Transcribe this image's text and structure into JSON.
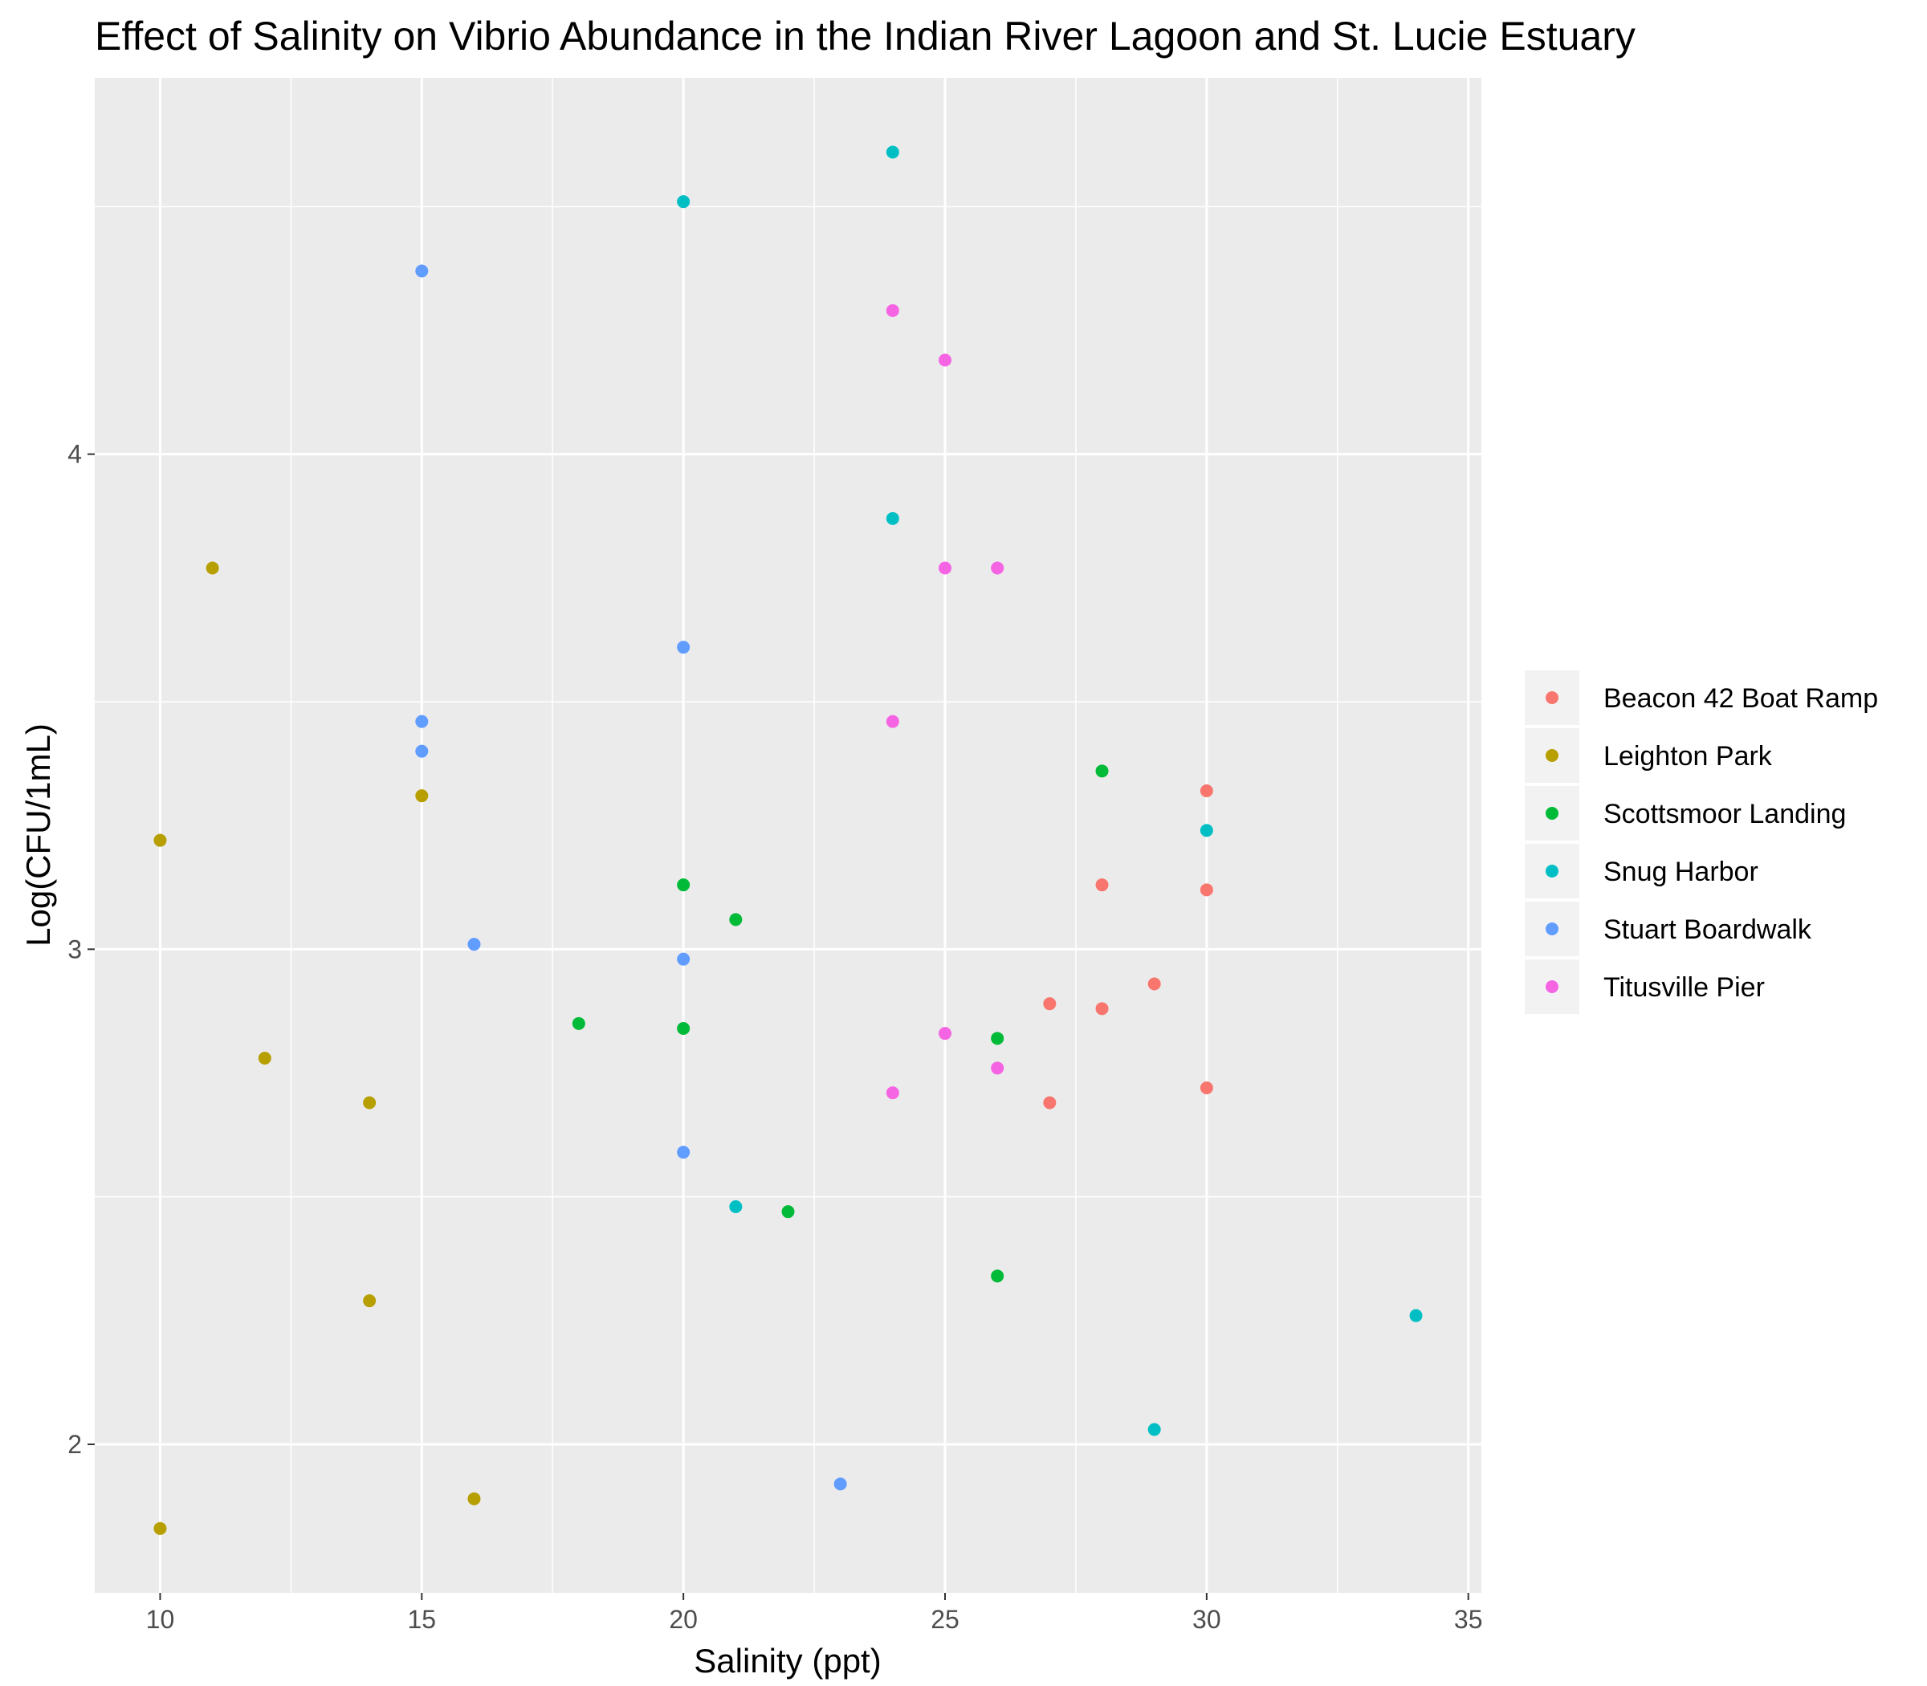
{
  "chart_data": {
    "type": "scatter",
    "title": "Effect of Salinity on Vibrio Abundance in the Indian River Lagoon and St. Lucie Estuary",
    "xlabel": "Salinity (ppt)",
    "ylabel": "Log(CFU/1mL)",
    "xlim": [
      8.75,
      35.25
    ],
    "ylim": [
      1.7,
      4.76
    ],
    "x_ticks": [
      10,
      15,
      20,
      25,
      30,
      35
    ],
    "y_ticks": [
      2,
      3,
      4
    ],
    "grid": true,
    "panel_background": "#ebebeb",
    "legend_position": "right",
    "series": [
      {
        "name": "Beacon 42 Boat Ramp",
        "color": "#F8766D",
        "points": [
          [
            30,
            3.32
          ],
          [
            28,
            3.13
          ],
          [
            30,
            3.12
          ],
          [
            29,
            2.93
          ],
          [
            27,
            2.89
          ],
          [
            28,
            2.88
          ],
          [
            30,
            2.72
          ],
          [
            27,
            2.69
          ]
        ]
      },
      {
        "name": "Leighton Park",
        "color": "#B79F00",
        "points": [
          [
            11,
            3.77
          ],
          [
            15,
            3.31
          ],
          [
            10,
            3.22
          ],
          [
            12,
            2.78
          ],
          [
            14,
            2.69
          ],
          [
            14,
            2.29
          ],
          [
            16,
            1.89
          ],
          [
            10,
            1.83
          ]
        ]
      },
      {
        "name": "Scottsmoor Landing",
        "color": "#00BA38",
        "points": [
          [
            28,
            3.36
          ],
          [
            20,
            3.13
          ],
          [
            21,
            3.06
          ],
          [
            18,
            2.85
          ],
          [
            20,
            2.84
          ],
          [
            26,
            2.82
          ],
          [
            22,
            2.47
          ],
          [
            26,
            2.34
          ]
        ]
      },
      {
        "name": "Snug Harbor",
        "color": "#00BFC4",
        "points": [
          [
            24,
            4.61
          ],
          [
            20,
            4.51
          ],
          [
            24,
            3.87
          ],
          [
            30,
            3.24
          ],
          [
            21,
            2.48
          ],
          [
            34,
            2.26
          ],
          [
            29,
            2.03
          ]
        ]
      },
      {
        "name": "Stuart Boardwalk",
        "color": "#619CFF",
        "points": [
          [
            15,
            4.37
          ],
          [
            20,
            3.61
          ],
          [
            15,
            3.46
          ],
          [
            15,
            3.4
          ],
          [
            16,
            3.01
          ],
          [
            20,
            2.98
          ],
          [
            20,
            2.59
          ],
          [
            23,
            1.92
          ]
        ]
      },
      {
        "name": "Titusville Pier",
        "color": "#F564E3",
        "points": [
          [
            24,
            4.29
          ],
          [
            25,
            4.19
          ],
          [
            25,
            3.77
          ],
          [
            26,
            3.77
          ],
          [
            24,
            3.46
          ],
          [
            25,
            2.83
          ],
          [
            26,
            2.76
          ],
          [
            24,
            2.71
          ]
        ]
      }
    ]
  }
}
